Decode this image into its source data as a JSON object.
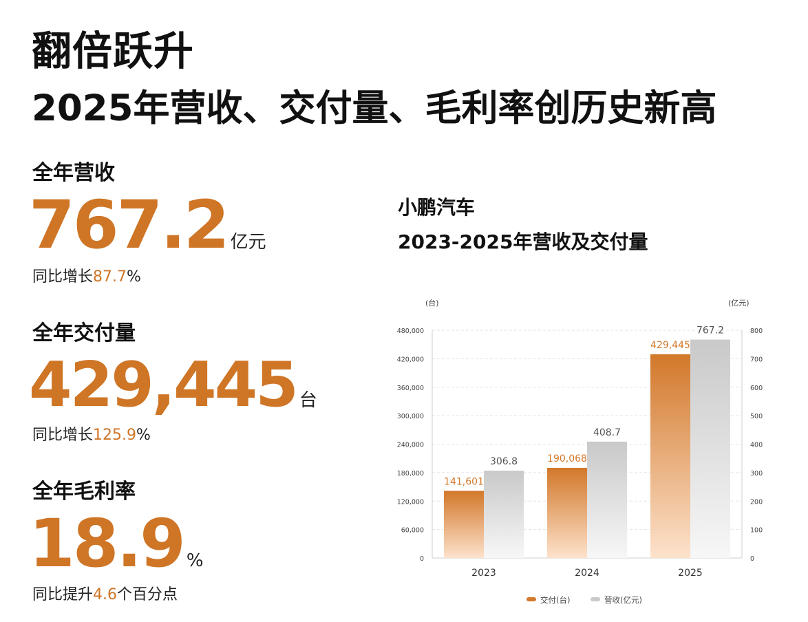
{
  "header": {
    "title_line1": "翻倍跃升",
    "title_line2": "2025年营收、交付量、毛利率创历史新高"
  },
  "metrics": [
    {
      "label": "全年营收",
      "value": "767.2",
      "unit": "亿元",
      "sub_prefix": "同比增长",
      "sub_value": "87.7",
      "sub_suffix": "%"
    },
    {
      "label": "全年交付量",
      "value": "429,445",
      "unit": "台",
      "sub_prefix": "同比增长",
      "sub_value": "125.9",
      "sub_suffix": "%"
    },
    {
      "label": "全年毛利率",
      "value": "18.9",
      "unit": "%",
      "sub_prefix": "同比提升",
      "sub_value": "4.6",
      "sub_suffix": "个百分点"
    }
  ],
  "chart_caption": {
    "line1": "小鹏汽车",
    "line2": "2023-2025年营收及交付量"
  },
  "colors": {
    "accent": "#cf7526",
    "delivery_top": "#d2782a",
    "delivery_bottom": "#fde2cc",
    "revenue_top": "#c9c9c9",
    "revenue_bottom": "#f7f7f7",
    "grid": "#e2e2e2"
  },
  "chart_data": {
    "type": "bar",
    "categories": [
      "2023",
      "2024",
      "2025"
    ],
    "left_axis_unit": "(台)",
    "right_axis_unit": "(亿元)",
    "left_ylim": [
      0,
      480000
    ],
    "right_ylim": [
      0,
      800
    ],
    "left_ticks": [
      "0",
      "60,000",
      "120,000",
      "180,000",
      "240,000",
      "300,000",
      "360,000",
      "420,000",
      "480,000"
    ],
    "right_ticks": [
      "0",
      "100",
      "200",
      "300",
      "400",
      "500",
      "600",
      "700",
      "800"
    ],
    "grid": true,
    "legend_position": "bottom-center",
    "series": [
      {
        "name": "交付(台)",
        "axis": "left",
        "values": [
          141601,
          190068,
          429445
        ],
        "labels": [
          "141,601",
          "190,068",
          "429,445"
        ]
      },
      {
        "name": "营收(亿元)",
        "axis": "right",
        "values": [
          306.8,
          408.7,
          767.2
        ],
        "labels": [
          "306.8",
          "408.7",
          "767.2"
        ]
      }
    ]
  }
}
